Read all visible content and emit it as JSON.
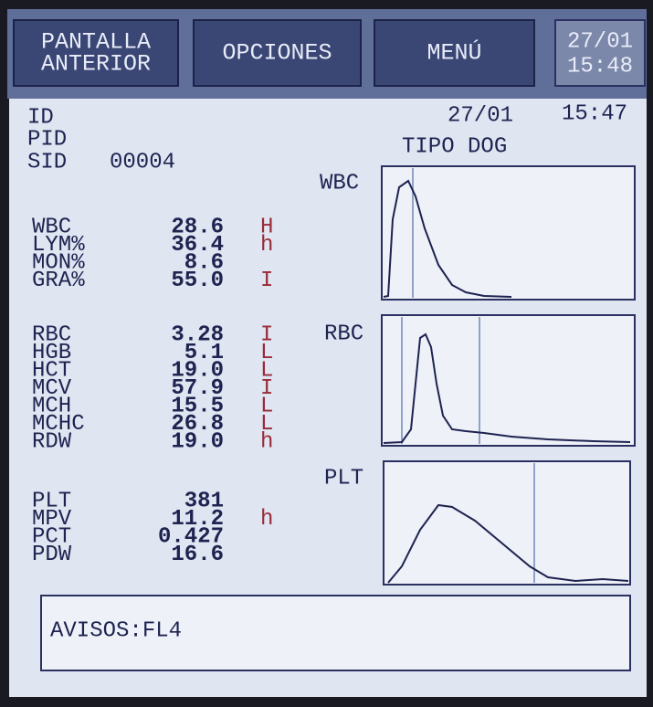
{
  "toolbar": {
    "buttons": [
      {
        "lines": [
          "PANTALLA",
          "ANTERIOR"
        ]
      },
      {
        "lines": [
          "OPCIONES"
        ]
      },
      {
        "lines": [
          "MENÚ"
        ]
      }
    ],
    "date": "27/01",
    "time": "15:48"
  },
  "header": {
    "id_label": "ID",
    "pid_label": "PID",
    "sid_label": "SID",
    "sid": "00004",
    "date": "27/01",
    "time": "15:47",
    "type": "TIPO DOG"
  },
  "results": [
    [
      {
        "name": "WBC",
        "value": "28.6",
        "flag": "H"
      },
      {
        "name": "LYM%",
        "value": "36.4",
        "flag": "h"
      },
      {
        "name": "MON%",
        "value": "8.6"
      },
      {
        "name": "GRA%",
        "value": "55.0",
        "flag": "I"
      }
    ],
    [
      {
        "name": "RBC",
        "value": "3.28",
        "flag": "I"
      },
      {
        "name": "HGB",
        "value": "5.1",
        "flag": "L"
      },
      {
        "name": "HCT",
        "value": "19.0",
        "flag": "L"
      },
      {
        "name": "MCV",
        "value": "57.9",
        "flag": "I"
      },
      {
        "name": "MCH",
        "value": "15.5",
        "flag": "L"
      },
      {
        "name": "MCHC",
        "value": "26.8",
        "flag": "L"
      },
      {
        "name": "RDW",
        "value": "19.0",
        "flag": "h"
      }
    ],
    [
      {
        "name": "PLT",
        "value": "381"
      },
      {
        "name": "MPV",
        "value": "11.2",
        "flag": "h"
      },
      {
        "name": "PCT",
        "value": "0.427"
      },
      {
        "name": "PDW",
        "value": "16.6"
      }
    ]
  ],
  "histograms": [
    {
      "label": "WBC"
    },
    {
      "label": "RBC"
    },
    {
      "label": "PLT"
    }
  ],
  "warnings": "AVISOS:FL4"
}
